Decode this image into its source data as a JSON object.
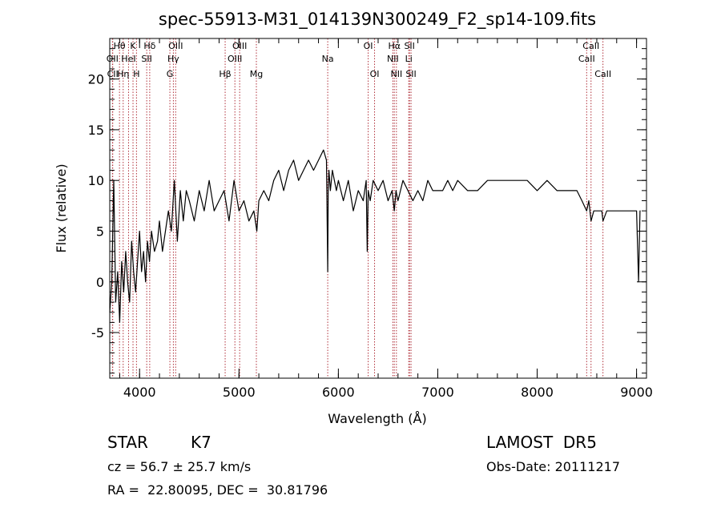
{
  "chart_data": {
    "type": "line",
    "title": "spec-55913-M31_014139N300249_F2_sp14-109.fits",
    "xlabel": "Wavelength (Å)",
    "ylabel": "Flux (relative)",
    "xlim": [
      3700,
      9100
    ],
    "ylim": [
      -9.5,
      24
    ],
    "x_ticks": [
      4000,
      5000,
      6000,
      7000,
      8000,
      9000
    ],
    "x_tick_labels": [
      "4000",
      "5000",
      "6000",
      "7000",
      "8000",
      "9000"
    ],
    "y_ticks": [
      -5,
      0,
      5,
      10,
      15,
      20
    ],
    "y_tick_labels": [
      "-5",
      "0",
      "5",
      "10",
      "15",
      "20"
    ],
    "grid": false,
    "series": [
      {
        "color": "#000000",
        "x": [
          3700,
          3720,
          3740,
          3760,
          3780,
          3800,
          3820,
          3840,
          3860,
          3880,
          3900,
          3920,
          3940,
          3960,
          3980,
          4000,
          4020,
          4040,
          4060,
          4080,
          4100,
          4120,
          4150,
          4180,
          4200,
          4230,
          4260,
          4290,
          4320,
          4350,
          4380,
          4410,
          4440,
          4470,
          4500,
          4550,
          4600,
          4650,
          4700,
          4750,
          4800,
          4850,
          4900,
          4950,
          5000,
          5050,
          5100,
          5150,
          5180,
          5200,
          5250,
          5300,
          5350,
          5400,
          5450,
          5500,
          5550,
          5600,
          5650,
          5700,
          5750,
          5800,
          5850,
          5880,
          5893,
          5898,
          5905,
          5920,
          5940,
          5960,
          5980,
          6000,
          6050,
          6100,
          6150,
          6200,
          6250,
          6280,
          6290,
          6300,
          6320,
          6350,
          6400,
          6450,
          6500,
          6540,
          6563,
          6580,
          6600,
          6650,
          6700,
          6750,
          6800,
          6850,
          6900,
          6950,
          7000,
          7050,
          7100,
          7150,
          7200,
          7300,
          7400,
          7500,
          7600,
          7700,
          7800,
          7900,
          8000,
          8100,
          8200,
          8300,
          8400,
          8450,
          8498,
          8520,
          8542,
          8570,
          8600,
          8650,
          8662,
          8700,
          8750,
          8800,
          8850,
          8900,
          8950,
          9000,
          9020,
          9035,
          9040
        ],
        "y": [
          -3,
          0,
          10,
          -2,
          1,
          -4,
          2,
          -1,
          3,
          0,
          -2,
          4,
          1,
          -1,
          2,
          5,
          1,
          3,
          0,
          4,
          2,
          5,
          3,
          4,
          6,
          3,
          5,
          7,
          5,
          10,
          4,
          9,
          6,
          9,
          8,
          6,
          9,
          7,
          10,
          7,
          8,
          9,
          6,
          10,
          7,
          8,
          6,
          7,
          5,
          8,
          9,
          8,
          10,
          11,
          9,
          11,
          12,
          10,
          11,
          12,
          11,
          12,
          13,
          12,
          1,
          9,
          11,
          9,
          11,
          10,
          9,
          10,
          8,
          10,
          7,
          9,
          8,
          10,
          3,
          9,
          8,
          10,
          9,
          10,
          8,
          9,
          7,
          9,
          8,
          10,
          9,
          8,
          9,
          8,
          10,
          9,
          9,
          9,
          10,
          9,
          10,
          9,
          9,
          10,
          10,
          10,
          10,
          10,
          9,
          10,
          9,
          9,
          9,
          8,
          7,
          8,
          6,
          7,
          7,
          7,
          6,
          7,
          7,
          7,
          7,
          7,
          7,
          7,
          0,
          7,
          7
        ]
      }
    ],
    "lines": [
      {
        "label": "Hθ",
        "wavelength": 3798,
        "row": 1
      },
      {
        "label": "OII",
        "wavelength": 3727,
        "row": 2
      },
      {
        "label": "CII",
        "wavelength": 3730,
        "row": 3
      },
      {
        "label": "K",
        "wavelength": 3934,
        "row": 1
      },
      {
        "label": "HeI",
        "wavelength": 3889,
        "row": 2
      },
      {
        "label": "Hη",
        "wavelength": 3835,
        "row": 3
      },
      {
        "label": "H",
        "wavelength": 3969,
        "row": 3
      },
      {
        "label": "Hδ",
        "wavelength": 4102,
        "row": 1
      },
      {
        "label": "SII",
        "wavelength": 4072,
        "row": 2
      },
      {
        "label": "OIII",
        "wavelength": 4363,
        "row": 1
      },
      {
        "label": "Hγ",
        "wavelength": 4340,
        "row": 2
      },
      {
        "label": "G",
        "wavelength": 4305,
        "row": 3
      },
      {
        "label": "OIII",
        "wavelength": 5007,
        "row": 1
      },
      {
        "label": "OIII",
        "wavelength": 4959,
        "row": 2
      },
      {
        "label": "Hβ",
        "wavelength": 4861,
        "row": 3
      },
      {
        "label": "Mg",
        "wavelength": 5175,
        "row": 3
      },
      {
        "label": "Na",
        "wavelength": 5893,
        "row": 2
      },
      {
        "label": "OI",
        "wavelength": 6300,
        "row": 1
      },
      {
        "label": "OI",
        "wavelength": 6364,
        "row": 3
      },
      {
        "label": "Hα",
        "wavelength": 6563,
        "row": 1
      },
      {
        "label": "SII",
        "wavelength": 6716,
        "row": 1
      },
      {
        "label": "NII",
        "wavelength": 6548,
        "row": 2
      },
      {
        "label": "Li",
        "wavelength": 6708,
        "row": 2
      },
      {
        "label": "NII",
        "wavelength": 6584,
        "row": 3
      },
      {
        "label": "SII",
        "wavelength": 6731,
        "row": 3
      },
      {
        "label": "CaII",
        "wavelength": 8542,
        "row": 1
      },
      {
        "label": "CaII",
        "wavelength": 8498,
        "row": 2
      },
      {
        "label": "CaII",
        "wavelength": 8662,
        "row": 3
      }
    ]
  },
  "info": {
    "class": "STAR",
    "subclass": "K7",
    "survey": "LAMOST  DR5",
    "cz": "cz = 56.7 ± 25.7 km/s",
    "obs_date": "Obs-Date: 20111217",
    "radec": "RA =  22.80095, DEC =  30.81796"
  }
}
